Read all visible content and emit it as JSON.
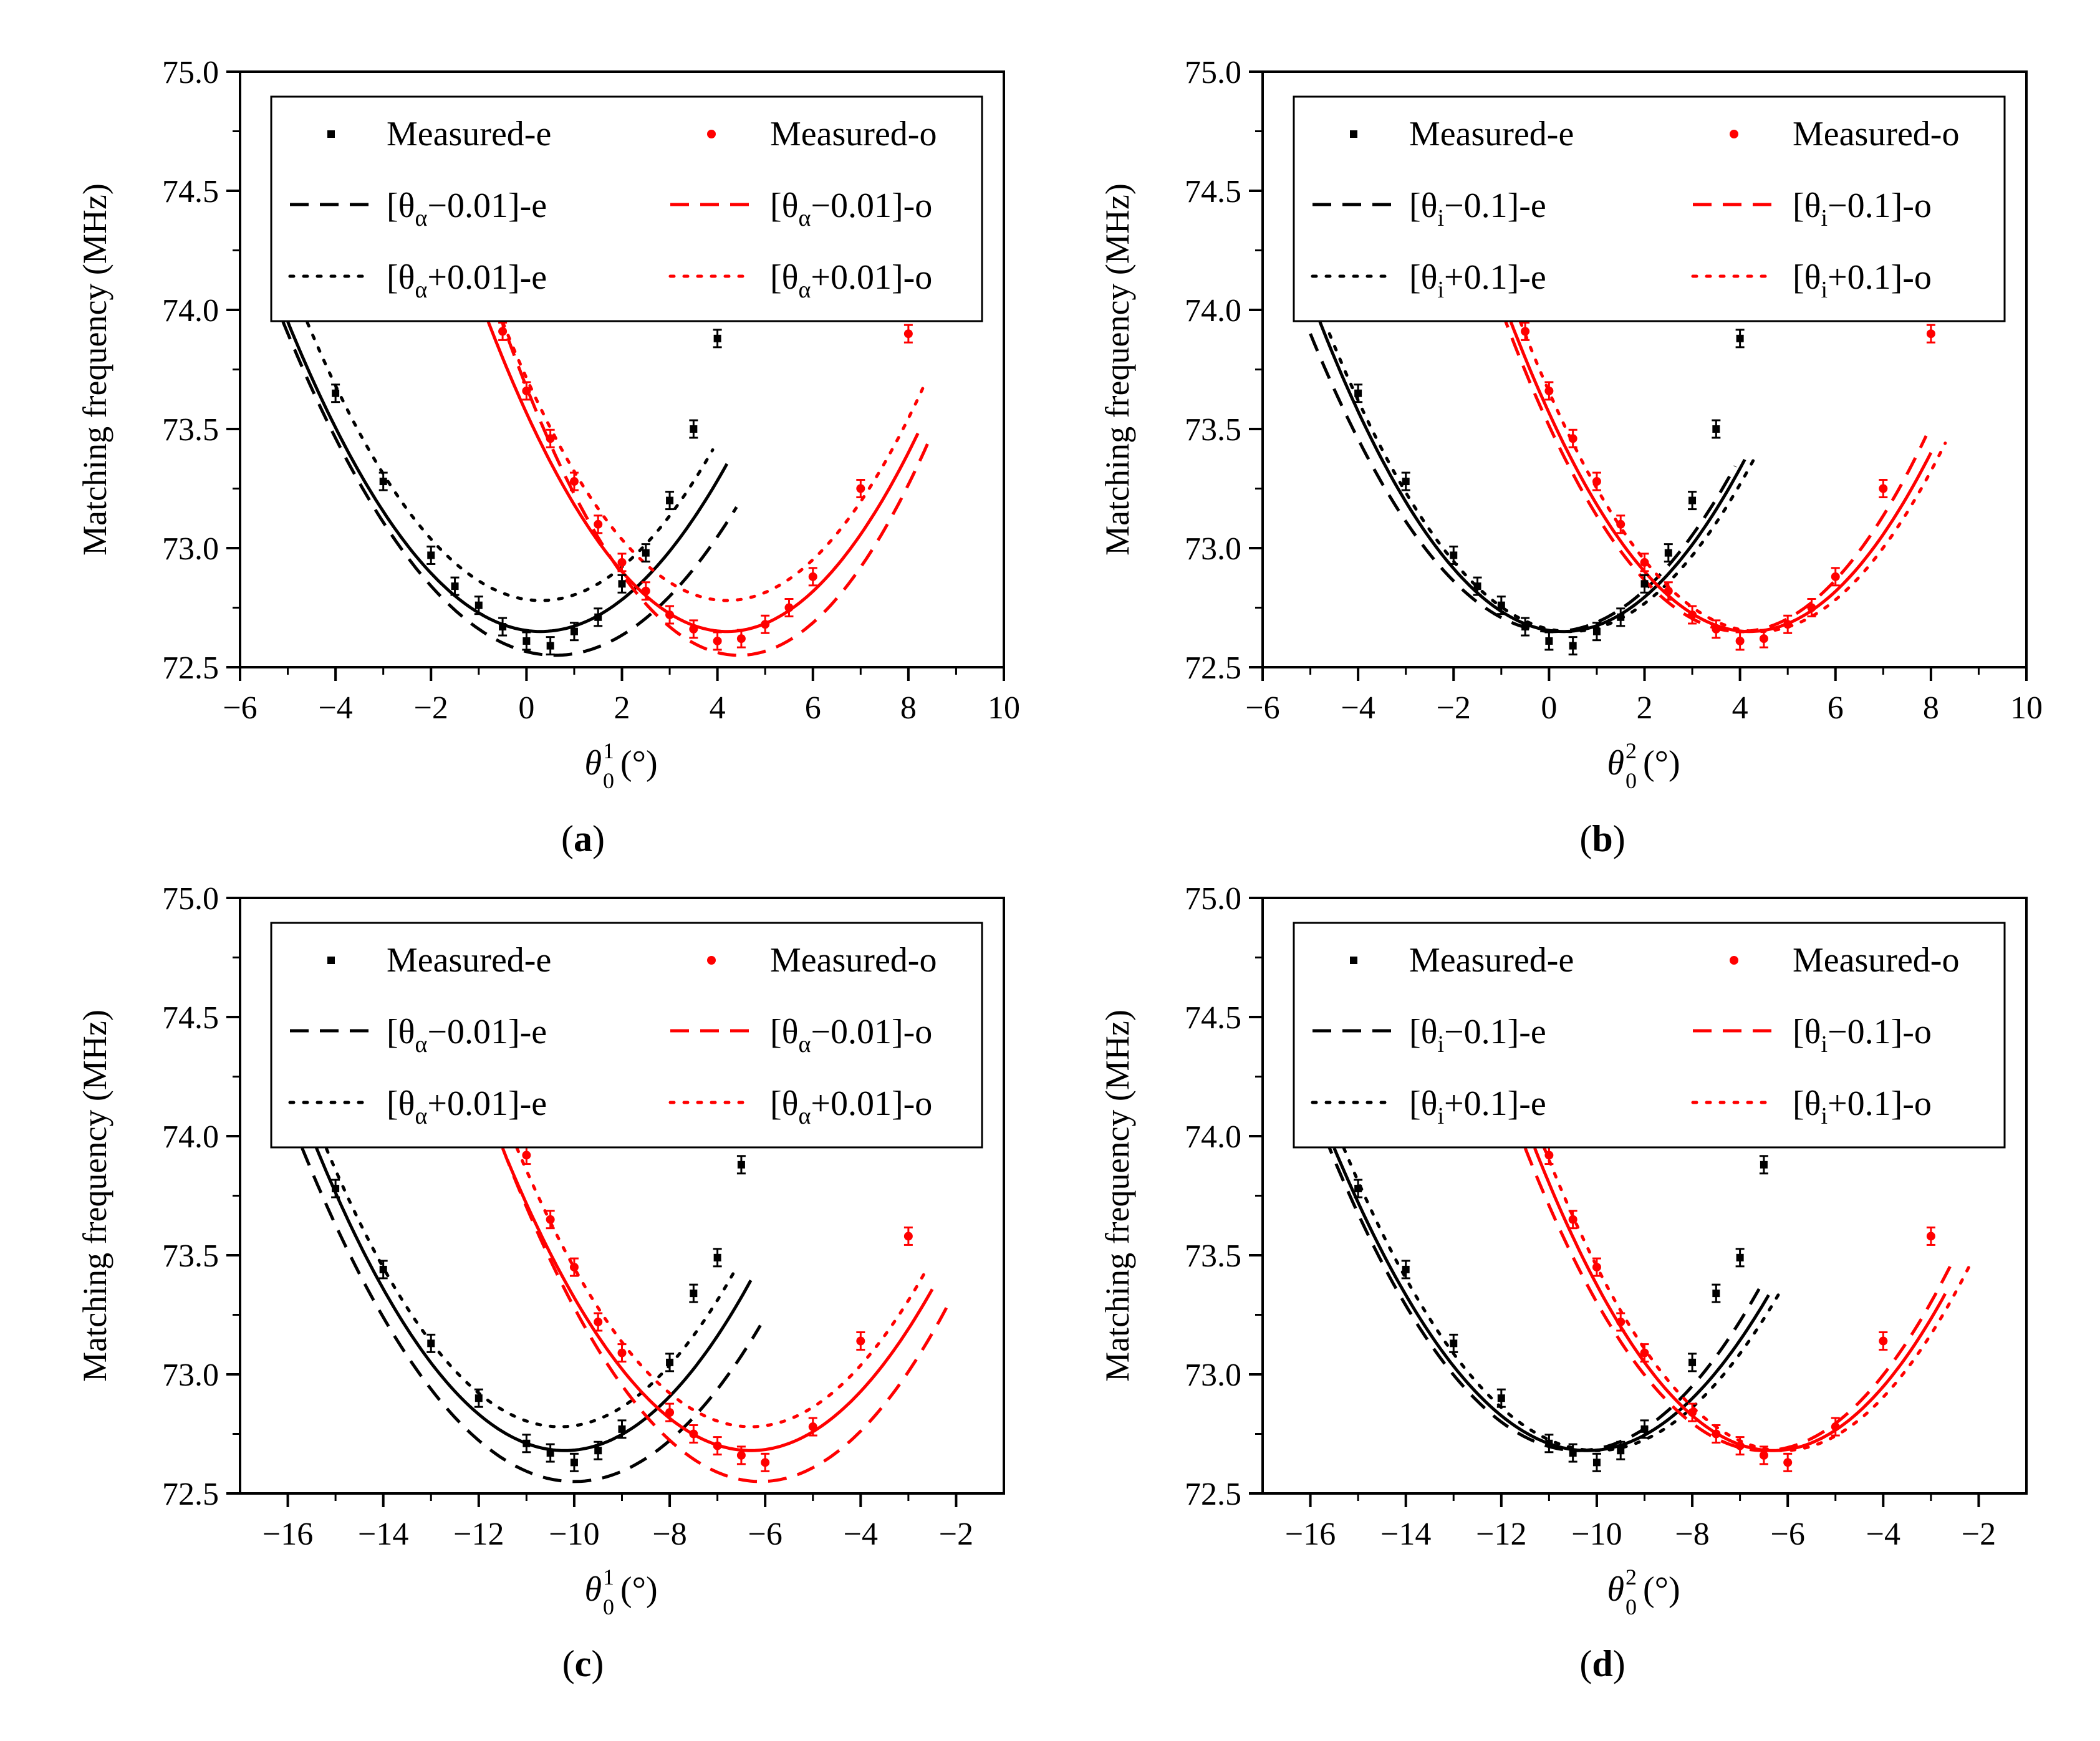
{
  "chart_data": [
    {
      "type": "scatter",
      "panel_label": "a",
      "ylabel": "Matching frequency (MHz)",
      "xlabel_symbol": "θ",
      "xlabel_sub": "0",
      "xlabel_sup": "1",
      "xlabel_unit": "(°)",
      "xlim": [
        -6,
        10
      ],
      "ylim": [
        72.5,
        75.0
      ],
      "xticks": [
        -6,
        -4,
        -2,
        0,
        2,
        4,
        6,
        8,
        10
      ],
      "yticks": [
        72.5,
        73.0,
        73.5,
        74.0,
        74.5,
        75.0
      ],
      "legend_position": "top",
      "legend": {
        "symbol": "θ",
        "subscript": "α",
        "minus": "−0.01",
        "plus": "+0.01",
        "e_marker": "Measured-e",
        "o_marker": "Measured-o",
        "e_suffix": "]-e",
        "o_suffix": "]-o"
      },
      "series": [
        {
          "name": "Measured-e",
          "color": "#000000",
          "style": "marker",
          "x": [
            -4,
            -3,
            -2,
            -1.5,
            -1,
            -0.5,
            0,
            0.5,
            1,
            1.5,
            2,
            2.5,
            3,
            3.5,
            4
          ],
          "y": [
            73.65,
            73.28,
            72.97,
            72.84,
            72.76,
            72.67,
            72.61,
            72.59,
            72.65,
            72.71,
            72.85,
            72.98,
            73.2,
            73.5,
            73.88
          ]
        },
        {
          "name": "Measured-o",
          "color": "#ff0000",
          "style": "marker",
          "x": [
            -0.5,
            0,
            0.5,
            1,
            1.5,
            2,
            2.5,
            3,
            3.5,
            4,
            4.5,
            5,
            5.5,
            6,
            7,
            8
          ],
          "y": [
            73.91,
            73.66,
            73.46,
            73.28,
            73.1,
            72.94,
            72.82,
            72.72,
            72.66,
            72.61,
            72.62,
            72.68,
            72.75,
            72.88,
            73.25,
            73.9
          ]
        },
        {
          "name": "fit-e",
          "color": "#000000",
          "style": "solid",
          "curve": {
            "vx": 0.3,
            "vy": 72.65,
            "xs": [
              -5,
              4.2
            ],
            "yTop": 73.95
          }
        },
        {
          "name": "[θα−0.01]-e",
          "color": "#000000",
          "style": "dashed",
          "curve": {
            "vx": 0.6,
            "vy": 72.55,
            "xs": [
              -5.1,
              4.4
            ],
            "yTop": 73.95
          }
        },
        {
          "name": "[θα+0.01]-e",
          "color": "#000000",
          "style": "dotted",
          "curve": {
            "vx": 0.3,
            "vy": 72.78,
            "xs": [
              -4.7,
              3.9
            ],
            "yTop": 74.0
          }
        },
        {
          "name": "fit-o",
          "color": "#ff0000",
          "style": "solid",
          "curve": {
            "vx": 4.2,
            "vy": 72.65,
            "xs": [
              -0.8,
              8.2
            ],
            "yTop": 73.95
          }
        },
        {
          "name": "[θα−0.01]-o",
          "color": "#ff0000",
          "style": "dashed",
          "curve": {
            "vx": 4.45,
            "vy": 72.55,
            "xs": [
              -0.6,
              8.4
            ],
            "yTop": 74.0
          }
        },
        {
          "name": "[θα+0.01]-o",
          "color": "#ff0000",
          "style": "dotted",
          "curve": {
            "vx": 4.2,
            "vy": 72.78,
            "xs": [
              -0.6,
              8.3
            ],
            "yTop": 74.0
          }
        }
      ]
    },
    {
      "type": "scatter",
      "panel_label": "b",
      "ylabel": "Matching frequency (MHz)",
      "xlabel_symbol": "θ",
      "xlabel_sub": "0",
      "xlabel_sup": "2",
      "xlabel_unit": "(°)",
      "xlim": [
        -6,
        10
      ],
      "ylim": [
        72.5,
        75.0
      ],
      "xticks": [
        -6,
        -4,
        -2,
        0,
        2,
        4,
        6,
        8,
        10
      ],
      "yticks": [
        72.5,
        73.0,
        73.5,
        74.0,
        74.5,
        75.0
      ],
      "legend_position": "top",
      "legend": {
        "symbol": "θ",
        "subscript": "i",
        "minus": "−0.1",
        "plus": "+0.1",
        "e_marker": "Measured-e",
        "o_marker": "Measured-o",
        "e_suffix": "]-e",
        "o_suffix": "]-o"
      },
      "series": [
        {
          "name": "Measured-e",
          "color": "#000000",
          "style": "marker",
          "x": [
            -4,
            -3,
            -2,
            -1.5,
            -1,
            -0.5,
            0,
            0.5,
            1,
            1.5,
            2,
            2.5,
            3,
            3.5,
            4
          ],
          "y": [
            73.65,
            73.28,
            72.97,
            72.84,
            72.76,
            72.67,
            72.61,
            72.59,
            72.65,
            72.71,
            72.85,
            72.98,
            73.2,
            73.5,
            73.88
          ]
        },
        {
          "name": "Measured-o",
          "color": "#ff0000",
          "style": "marker",
          "x": [
            -0.5,
            0,
            0.5,
            1,
            1.5,
            2,
            2.5,
            3,
            3.5,
            4,
            4.5,
            5,
            5.5,
            6,
            7,
            8
          ],
          "y": [
            73.91,
            73.66,
            73.46,
            73.28,
            73.1,
            72.94,
            72.82,
            72.72,
            72.66,
            72.61,
            72.62,
            72.68,
            72.75,
            72.88,
            73.25,
            73.9
          ]
        },
        {
          "name": "fit-e",
          "color": "#000000",
          "style": "solid",
          "curve": {
            "vx": 0.3,
            "vy": 72.65,
            "xs": [
              -4.8,
              4.1
            ],
            "yTop": 73.95
          }
        },
        {
          "name": "[θi−0.1]-e",
          "color": "#000000",
          "style": "dashed",
          "curve": {
            "vx": 0.1,
            "vy": 72.65,
            "xs": [
              -5.0,
              3.9
            ],
            "yTop": 73.9
          }
        },
        {
          "name": "[θi+0.1]-e",
          "color": "#000000",
          "style": "dotted",
          "curve": {
            "vx": 0.45,
            "vy": 72.65,
            "xs": [
              -4.6,
              4.3
            ],
            "yTop": 73.9
          }
        },
        {
          "name": "fit-o",
          "color": "#ff0000",
          "style": "solid",
          "curve": {
            "vx": 4.2,
            "vy": 72.65,
            "xs": [
              -0.8,
              8.0
            ],
            "yTop": 73.95
          }
        },
        {
          "name": "[θi−0.1]-o",
          "color": "#ff0000",
          "style": "dashed",
          "curve": {
            "vx": 4.0,
            "vy": 72.65,
            "xs": [
              -1.0,
              7.9
            ],
            "yTop": 74.0
          }
        },
        {
          "name": "[θi+0.1]-o",
          "color": "#ff0000",
          "style": "dotted",
          "curve": {
            "vx": 4.4,
            "vy": 72.65,
            "xs": [
              -0.6,
              8.3
            ],
            "yTop": 73.95
          }
        }
      ]
    },
    {
      "type": "scatter",
      "panel_label": "c",
      "ylabel": "Matching frequency (MHz)",
      "xlabel_symbol": "θ",
      "xlabel_sub": "0",
      "xlabel_sup": "1",
      "xlabel_unit": "(°)",
      "xlim": [
        -17,
        -1
      ],
      "ylim": [
        72.5,
        75.0
      ],
      "xticks": [
        -16,
        -14,
        -12,
        -10,
        -8,
        -6,
        -4,
        -2
      ],
      "yticks": [
        72.5,
        73.0,
        73.5,
        74.0,
        74.5,
        75.0
      ],
      "legend_position": "top",
      "legend": {
        "symbol": "θ",
        "subscript": "α",
        "minus": "−0.01",
        "plus": "+0.01",
        "e_marker": "Measured-e",
        "o_marker": "Measured-o",
        "e_suffix": "]-e",
        "o_suffix": "]-o"
      },
      "series": [
        {
          "name": "Measured-e",
          "color": "#000000",
          "style": "marker",
          "x": [
            -15,
            -14,
            -13,
            -12,
            -11,
            -10.5,
            -10,
            -9.5,
            -9,
            -8,
            -7.5,
            -7,
            -6.5
          ],
          "y": [
            73.78,
            73.44,
            73.13,
            72.9,
            72.71,
            72.67,
            72.63,
            72.68,
            72.77,
            73.05,
            73.34,
            73.49,
            73.88
          ]
        },
        {
          "name": "Measured-o",
          "color": "#ff0000",
          "style": "marker",
          "x": [
            -11,
            -10.5,
            -10,
            -9.5,
            -9,
            -8,
            -7.5,
            -7,
            -6.5,
            -6,
            -5,
            -4,
            -3
          ],
          "y": [
            73.92,
            73.65,
            73.45,
            73.22,
            73.09,
            72.84,
            72.75,
            72.7,
            72.66,
            72.63,
            72.78,
            73.14,
            73.58
          ]
        },
        {
          "name": "fit-e",
          "color": "#000000",
          "style": "solid",
          "curve": {
            "vx": -10.2,
            "vy": 72.68,
            "xs": [
              -15.5,
              -6.3
            ],
            "yTop": 74.0
          }
        },
        {
          "name": "[θα−0.01]-e",
          "color": "#000000",
          "style": "dashed",
          "curve": {
            "vx": -10.0,
            "vy": 72.55,
            "xs": [
              -15.7,
              -6.1
            ],
            "yTop": 73.95
          }
        },
        {
          "name": "[θα+0.01]-e",
          "color": "#000000",
          "style": "dotted",
          "curve": {
            "vx": -10.3,
            "vy": 72.78,
            "xs": [
              -15.3,
              -6.6
            ],
            "yTop": 74.0
          }
        },
        {
          "name": "fit-o",
          "color": "#ff0000",
          "style": "solid",
          "curve": {
            "vx": -6.3,
            "vy": 72.68,
            "xs": [
              -11.4,
              -2.5
            ],
            "yTop": 73.9
          }
        },
        {
          "name": "[θα−0.01]-o",
          "color": "#ff0000",
          "style": "dashed",
          "curve": {
            "vx": -6.1,
            "vy": 72.55,
            "xs": [
              -11.5,
              -2.2
            ],
            "yTop": 73.95
          }
        },
        {
          "name": "[θα+0.01]-o",
          "color": "#ff0000",
          "style": "dotted",
          "curve": {
            "vx": -6.3,
            "vy": 72.78,
            "xs": [
              -11.2,
              -2.6
            ],
            "yTop": 73.95
          }
        }
      ]
    },
    {
      "type": "scatter",
      "panel_label": "d",
      "ylabel": "Matching frequency (MHz)",
      "xlabel_symbol": "θ",
      "xlabel_sub": "0",
      "xlabel_sup": "2",
      "xlabel_unit": "(°)",
      "xlim": [
        -17,
        -1
      ],
      "ylim": [
        72.5,
        75.0
      ],
      "xticks": [
        -16,
        -14,
        -12,
        -10,
        -8,
        -6,
        -4,
        -2
      ],
      "yticks": [
        72.5,
        73.0,
        73.5,
        74.0,
        74.5,
        75.0
      ],
      "legend_position": "top",
      "legend": {
        "symbol": "θ",
        "subscript": "i",
        "minus": "−0.1",
        "plus": "+0.1",
        "e_marker": "Measured-e",
        "o_marker": "Measured-o",
        "e_suffix": "]-e",
        "o_suffix": "]-o"
      },
      "series": [
        {
          "name": "Measured-e",
          "color": "#000000",
          "style": "marker",
          "x": [
            -15,
            -14,
            -13,
            -12,
            -11,
            -10.5,
            -10,
            -9.5,
            -9,
            -8,
            -7.5,
            -7,
            -6.5
          ],
          "y": [
            73.78,
            73.44,
            73.13,
            72.9,
            72.71,
            72.67,
            72.63,
            72.68,
            72.77,
            73.05,
            73.34,
            73.49,
            73.88
          ]
        },
        {
          "name": "Measured-o",
          "color": "#ff0000",
          "style": "marker",
          "x": [
            -11,
            -10.5,
            -10,
            -9.5,
            -9,
            -8,
            -7.5,
            -7,
            -6.5,
            -6,
            -5,
            -4,
            -3
          ],
          "y": [
            73.92,
            73.65,
            73.45,
            73.22,
            73.09,
            72.84,
            72.75,
            72.7,
            72.66,
            72.63,
            72.78,
            73.14,
            73.58
          ]
        },
        {
          "name": "fit-e",
          "color": "#000000",
          "style": "solid",
          "curve": {
            "vx": -10.2,
            "vy": 72.68,
            "xs": [
              -15.5,
              -6.4
            ],
            "yTop": 73.95
          }
        },
        {
          "name": "[θi−0.1]-e",
          "color": "#000000",
          "style": "dashed",
          "curve": {
            "vx": -10.4,
            "vy": 72.68,
            "xs": [
              -15.7,
              -6.6
            ],
            "yTop": 74.0
          }
        },
        {
          "name": "[θi+0.1]-e",
          "color": "#000000",
          "style": "dotted",
          "curve": {
            "vx": -10.0,
            "vy": 72.68,
            "xs": [
              -15.3,
              -6.2
            ],
            "yTop": 73.95
          }
        },
        {
          "name": "fit-o",
          "color": "#ff0000",
          "style": "solid",
          "curve": {
            "vx": -6.3,
            "vy": 72.68,
            "xs": [
              -11.3,
              -2.7
            ],
            "yTop": 73.95
          }
        },
        {
          "name": "[θi−0.1]-o",
          "color": "#ff0000",
          "style": "dashed",
          "curve": {
            "vx": -6.5,
            "vy": 72.68,
            "xs": [
              -11.5,
              -2.6
            ],
            "yTop": 73.95
          }
        },
        {
          "name": "[θi+0.1]-o",
          "color": "#ff0000",
          "style": "dotted",
          "curve": {
            "vx": -6.1,
            "vy": 72.68,
            "xs": [
              -11.1,
              -2.2
            ],
            "yTop": 73.95
          }
        }
      ]
    }
  ]
}
